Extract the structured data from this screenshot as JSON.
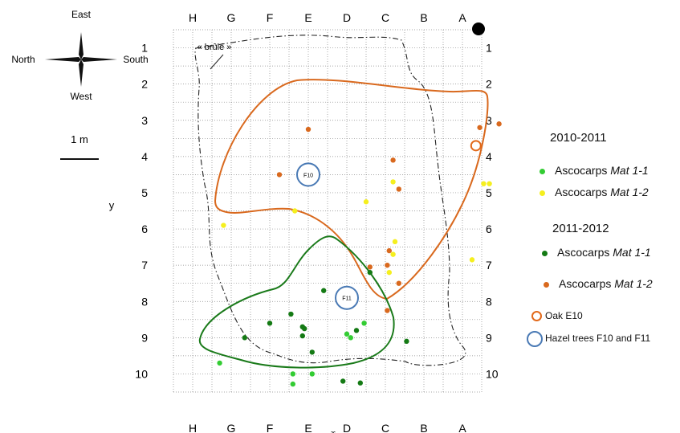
{
  "compass": {
    "north": "North",
    "south": "South",
    "east": "East",
    "west": "West"
  },
  "scale_label": "1 m",
  "y_label": "y",
  "columns": [
    "H",
    "G",
    "F",
    "E",
    "D",
    "C",
    "B",
    "A"
  ],
  "rows": [
    "1",
    "2",
    "3",
    "4",
    "5",
    "6",
    "7",
    "8",
    "9",
    "10"
  ],
  "burnt_label": "« brûlé »",
  "trees": [
    {
      "label": "F10",
      "col": "E",
      "row": 4,
      "kind": "hazel"
    },
    {
      "label": "F11",
      "col": "D",
      "row": 7.4,
      "kind": "hazel"
    },
    {
      "label": "",
      "col": "A",
      "row": 3.2,
      "kind": "oak"
    }
  ],
  "colors": {
    "mat11_2010": "#33cc33",
    "mat12_2010": "#f5ef1e",
    "mat11_2011": "#147a14",
    "mat12_2011": "#d9691e",
    "oak": "#e2691a",
    "hazel": "#4a7ab5",
    "grid": "#888888"
  },
  "legend": {
    "title_2010": "2010-2011",
    "title_2011": "2011-2012",
    "items_2010": [
      {
        "prefix": "Ascocarps ",
        "mat": "Mat 1-1",
        "color_key": "mat11_2010"
      },
      {
        "prefix": "Ascocarps ",
        "mat": "Mat 1-2",
        "color_key": "mat12_2010"
      }
    ],
    "items_2011": [
      {
        "prefix": "Ascocarps ",
        "mat": "Mat 1-1",
        "color_key": "mat11_2011"
      },
      {
        "prefix": "Ascocarps ",
        "mat": "Mat 1-2",
        "color_key": "mat12_2011"
      }
    ],
    "oak_label": "Oak E10",
    "hazel_label": "Hazel trees F10 and F11"
  },
  "ascocarps": {
    "mat11_2010": [
      [
        1.2,
        9.2
      ],
      [
        3.1,
        9.5
      ],
      [
        3.6,
        9.5
      ],
      [
        4.5,
        8.4
      ],
      [
        4.6,
        8.5
      ],
      [
        4.95,
        8.1
      ],
      [
        3.1,
        9.78
      ]
    ],
    "mat12_2010": [
      [
        1.3,
        5.4
      ],
      [
        3.15,
        5.0
      ],
      [
        5.0,
        4.75
      ],
      [
        5.7,
        4.2
      ],
      [
        5.75,
        5.85
      ],
      [
        5.7,
        6.2
      ],
      [
        5.6,
        6.7
      ],
      [
        7.75,
        6.35
      ],
      [
        8.05,
        4.25
      ],
      [
        8.2,
        4.25
      ]
    ],
    "mat11_2011": [
      [
        1.85,
        8.5
      ],
      [
        2.5,
        8.1
      ],
      [
        3.05,
        7.85
      ],
      [
        3.35,
        8.2
      ],
      [
        3.4,
        8.25
      ],
      [
        3.35,
        8.45
      ],
      [
        3.6,
        8.9
      ],
      [
        3.9,
        7.2
      ],
      [
        4.4,
        9.7
      ],
      [
        4.75,
        8.3
      ],
      [
        4.85,
        9.75
      ],
      [
        6.05,
        8.6
      ],
      [
        5.1,
        6.7
      ]
    ],
    "mat12_2011": [
      [
        2.75,
        4.0
      ],
      [
        3.5,
        2.75
      ],
      [
        5.1,
        6.55
      ],
      [
        5.7,
        3.6
      ],
      [
        5.85,
        4.4
      ],
      [
        5.6,
        6.1
      ],
      [
        5.55,
        6.5
      ],
      [
        5.85,
        7.0
      ],
      [
        5.55,
        7.75
      ],
      [
        7.95,
        2.7
      ],
      [
        8.45,
        2.6
      ]
    ]
  }
}
